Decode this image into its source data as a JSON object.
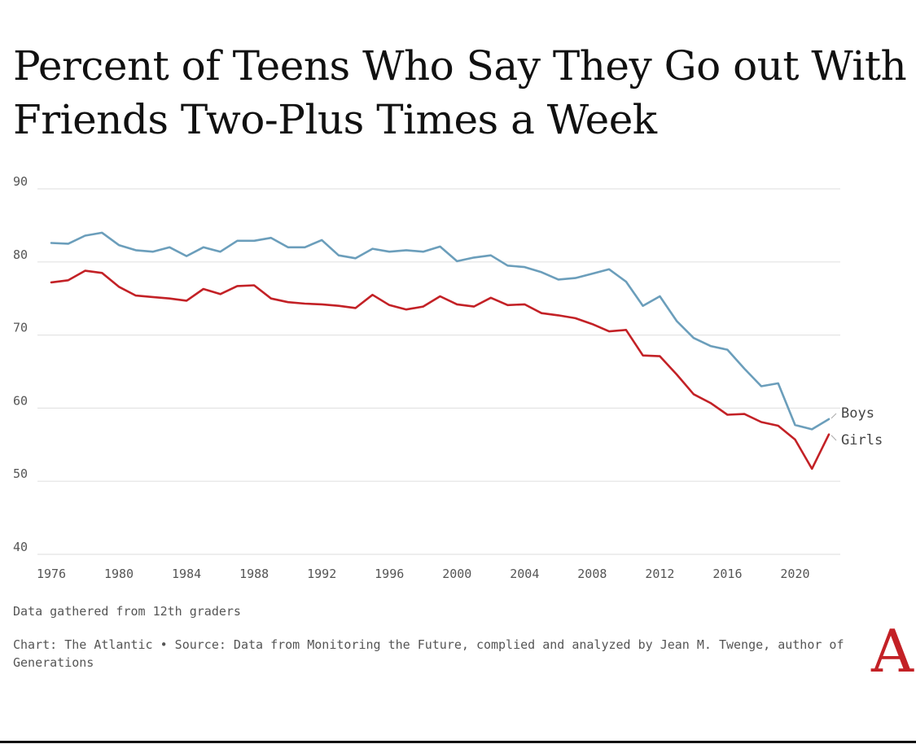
{
  "title": "Percent of Teens Who Say They Go out With Friends Two-Plus Times a Week",
  "note": "Data gathered from 12th graders",
  "source": "Chart: The Atlantic • Source: Data from Monitoring the Future, complied and analyzed by Jean M. Twenge, author of Generations",
  "logo": "A",
  "chart_data": {
    "type": "line",
    "xlim": [
      1976,
      2022
    ],
    "ylim": [
      40,
      90
    ],
    "yticks": [
      40,
      50,
      60,
      70,
      80,
      90
    ],
    "xticks": [
      1976,
      1980,
      1984,
      1988,
      1992,
      1996,
      2000,
      2004,
      2008,
      2012,
      2016,
      2020
    ],
    "grid": true,
    "x": [
      1976,
      1977,
      1978,
      1979,
      1980,
      1981,
      1982,
      1983,
      1984,
      1985,
      1986,
      1987,
      1988,
      1989,
      1990,
      1991,
      1992,
      1993,
      1994,
      1995,
      1996,
      1997,
      1998,
      1999,
      2000,
      2001,
      2002,
      2003,
      2004,
      2005,
      2006,
      2007,
      2008,
      2009,
      2010,
      2011,
      2012,
      2013,
      2014,
      2015,
      2016,
      2017,
      2018,
      2019,
      2020,
      2021,
      2022
    ],
    "series": [
      {
        "name": "Boys",
        "color": "#6b9ebb",
        "values": [
          82.6,
          82.5,
          83.6,
          84.0,
          82.3,
          81.6,
          81.4,
          82.0,
          80.8,
          82.0,
          81.4,
          82.9,
          82.9,
          83.3,
          82.0,
          82.0,
          83.0,
          80.9,
          80.5,
          81.8,
          81.4,
          81.6,
          81.4,
          82.1,
          80.1,
          80.6,
          80.9,
          79.5,
          79.3,
          78.6,
          77.6,
          77.8,
          78.4,
          79.0,
          77.3,
          74.0,
          75.3,
          71.9,
          69.6,
          68.5,
          68.0,
          65.4,
          63.0,
          63.4,
          57.7,
          57.1,
          58.5
        ]
      },
      {
        "name": "Girls",
        "color": "#c32126",
        "values": [
          77.2,
          77.5,
          78.8,
          78.5,
          76.6,
          75.4,
          75.2,
          75.0,
          74.7,
          76.3,
          75.6,
          76.7,
          76.8,
          75.0,
          74.5,
          74.3,
          74.2,
          74.0,
          73.7,
          75.5,
          74.1,
          73.5,
          73.9,
          75.3,
          74.2,
          73.9,
          75.1,
          74.1,
          74.2,
          73.0,
          72.7,
          72.3,
          71.5,
          70.5,
          70.7,
          67.2,
          67.1,
          64.6,
          61.9,
          60.7,
          59.1,
          59.2,
          58.1,
          57.6,
          55.7,
          51.7,
          56.4
        ]
      }
    ]
  }
}
